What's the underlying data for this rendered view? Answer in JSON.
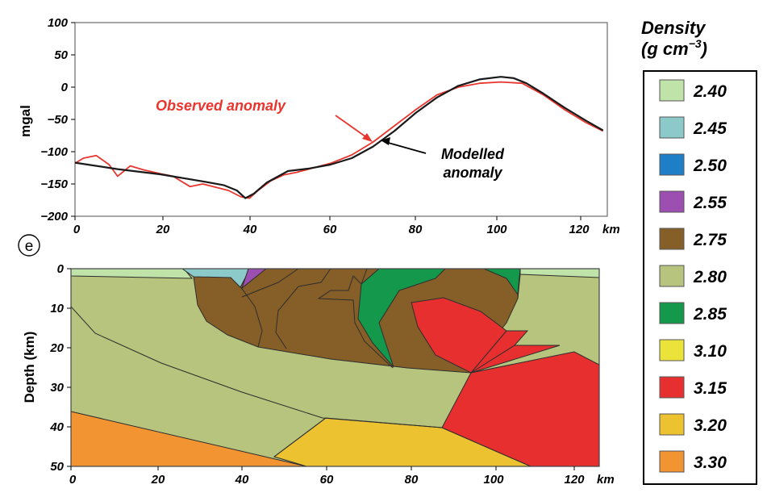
{
  "gravity_panel": {
    "ylabel": "mgal",
    "x_unit": "km",
    "x_ticks": [
      "0",
      "20",
      "40",
      "60",
      "80",
      "100",
      "120"
    ],
    "y_ticks": [
      "100",
      "50",
      "0",
      "−50",
      "−100",
      "−150",
      "−200"
    ],
    "observed_label": "Observed anomaly",
    "modelled_label": "Modelled anomaly",
    "colors": {
      "observed": "#e8352d",
      "modelled": "#1a1a1a"
    }
  },
  "section_panel": {
    "panel_label": "e",
    "ylabel": "Depth (km)",
    "x_unit": "km",
    "x_ticks": [
      "0",
      "20",
      "40",
      "60",
      "80",
      "100",
      "120"
    ],
    "y_ticks": [
      "0",
      "10",
      "20",
      "30",
      "40",
      "50"
    ]
  },
  "legend": {
    "title_line1": "Density",
    "title_line2": "(g cm",
    "title_sup": "−3",
    "title_close": ")",
    "items": [
      {
        "value": "2.40",
        "color": "#bfe3a8"
      },
      {
        "value": "2.45",
        "color": "#8ccaca"
      },
      {
        "value": "2.50",
        "color": "#1e7fc6"
      },
      {
        "value": "2.55",
        "color": "#9c4fb0"
      },
      {
        "value": "2.75",
        "color": "#865f28"
      },
      {
        "value": "2.80",
        "color": "#b7c47d"
      },
      {
        "value": "2.85",
        "color": "#13984c"
      },
      {
        "value": "3.10",
        "color": "#ece33a"
      },
      {
        "value": "3.15",
        "color": "#e82f2f"
      },
      {
        "value": "3.20",
        "color": "#edc230"
      },
      {
        "value": "3.30",
        "color": "#f29432"
      }
    ]
  },
  "chart_data": {
    "type": "line",
    "xlabel": "km",
    "ylabel": "mgal",
    "xlim": [
      0,
      125
    ],
    "ylim": [
      -200,
      100
    ],
    "series": [
      {
        "name": "Observed anomaly",
        "color": "#e8352d",
        "x": [
          0,
          2,
          5,
          8,
          10,
          13,
          16,
          20,
          23,
          27,
          30,
          33,
          36,
          39,
          41,
          43,
          46,
          49,
          52,
          56,
          60,
          65,
          70,
          75,
          80,
          85,
          90,
          95,
          100,
          105,
          110,
          115,
          120,
          124
        ],
        "y": [
          -118,
          -110,
          -106,
          -120,
          -138,
          -122,
          -128,
          -134,
          -138,
          -154,
          -150,
          -155,
          -160,
          -170,
          -172,
          -160,
          -145,
          -136,
          -132,
          -125,
          -118,
          -105,
          -85,
          -60,
          -35,
          -12,
          0,
          6,
          8,
          6,
          -12,
          -35,
          -55,
          -68
        ]
      },
      {
        "name": "Modelled anomaly",
        "color": "#1a1a1a",
        "x": [
          0,
          10,
          20,
          30,
          35,
          38,
          40,
          42,
          45,
          50,
          55,
          60,
          65,
          70,
          75,
          80,
          85,
          90,
          95,
          100,
          103,
          106,
          110,
          115,
          120,
          124
        ],
        "y": [
          -117,
          -127,
          -135,
          -146,
          -152,
          -160,
          -172,
          -165,
          -148,
          -130,
          -126,
          -120,
          -110,
          -92,
          -68,
          -40,
          -16,
          2,
          12,
          16,
          14,
          6,
          -10,
          -32,
          -52,
          -67
        ]
      }
    ]
  }
}
